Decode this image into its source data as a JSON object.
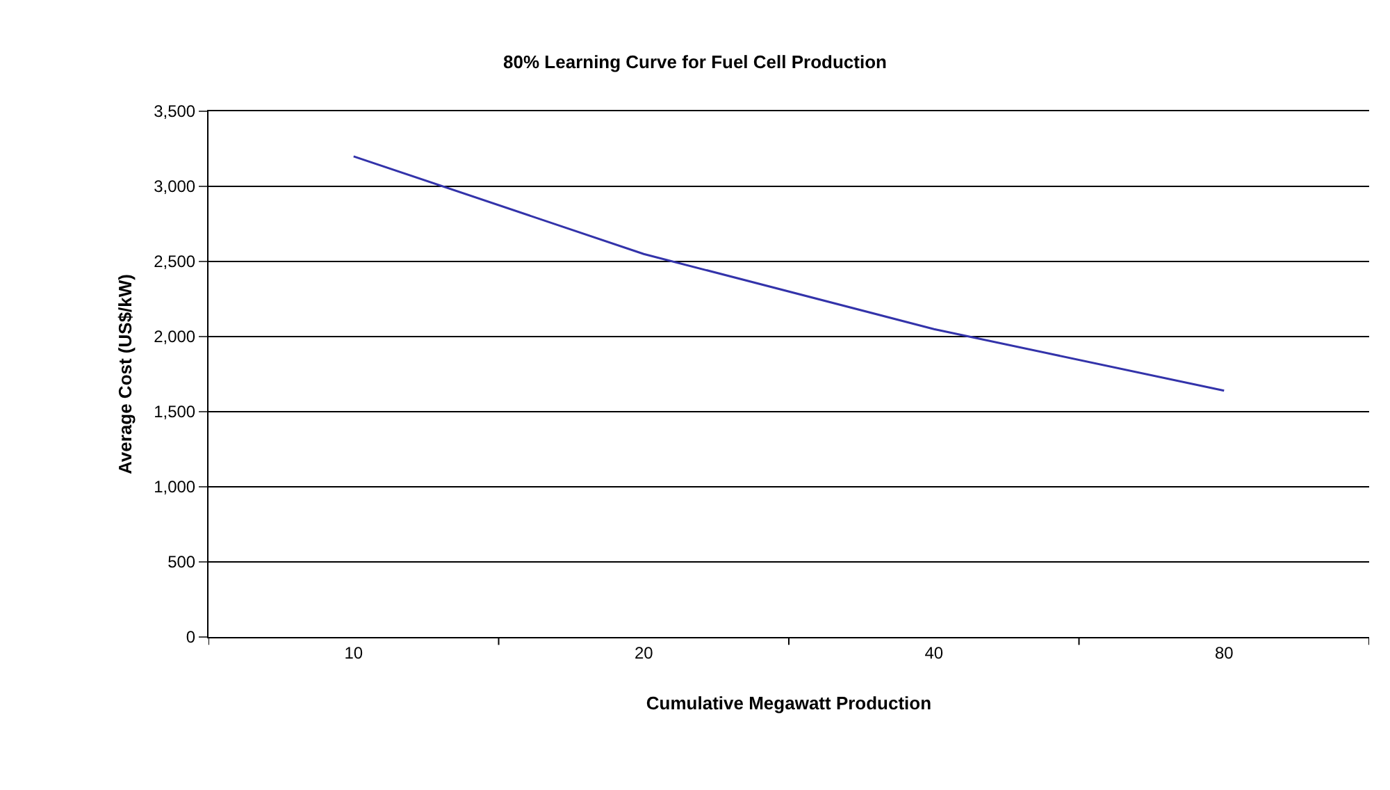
{
  "chart_data": {
    "type": "line",
    "title": "80% Learning Curve for Fuel Cell Production",
    "xlabel": "Cumulative Megawatt Production",
    "ylabel": "Average Cost (US$/kW)",
    "categories": [
      "10",
      "20",
      "40",
      "80"
    ],
    "series": [
      {
        "color": "#3333aa",
        "values": [
          3200,
          2550,
          2050,
          1640
        ]
      }
    ],
    "ylim": [
      0,
      3500
    ],
    "yticks": [
      {
        "value": 0,
        "label": "0"
      },
      {
        "value": 500,
        "label": "500"
      },
      {
        "value": 1000,
        "label": "1,000"
      },
      {
        "value": 1500,
        "label": "1,500"
      },
      {
        "value": 2000,
        "label": "2,000"
      },
      {
        "value": 2500,
        "label": "2,500"
      },
      {
        "value": 3000,
        "label": "3,000"
      },
      {
        "value": 3500,
        "label": "3,500"
      }
    ],
    "grid": "y",
    "marker": "none",
    "line_style": "solid"
  }
}
